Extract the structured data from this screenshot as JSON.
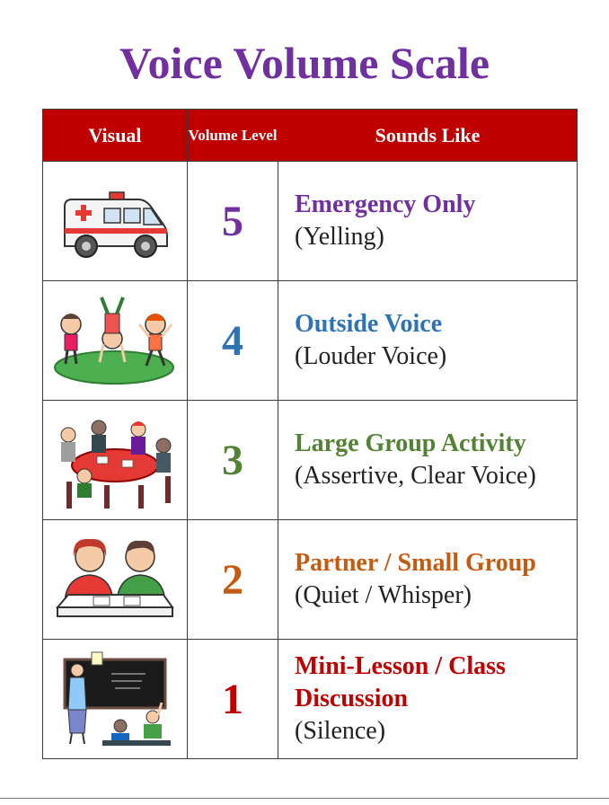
{
  "title": "Voice Volume Scale",
  "table": {
    "headers": {
      "visual": "Visual",
      "level": "Volume Level",
      "sounds": "Sounds Like"
    },
    "rows": [
      {
        "level": "5",
        "title": "Emergency Only",
        "subtitle": "(Yelling)",
        "color": "#7030a0",
        "icon": "ambulance-icon"
      },
      {
        "level": "4",
        "title": "Outside Voice",
        "subtitle": "(Louder Voice)",
        "color": "#2e74b5",
        "icon": "children-playing-icon"
      },
      {
        "level": "3",
        "title": "Large Group Activity",
        "subtitle": "(Assertive, Clear Voice)",
        "color": "#548235",
        "icon": "group-table-icon"
      },
      {
        "level": "2",
        "title": "Partner / Small Group",
        "subtitle": "(Quiet / Whisper)",
        "color": "#c55a11",
        "icon": "partners-desk-icon"
      },
      {
        "level": "1",
        "title": "Mini-Lesson / Class Discussion",
        "subtitle": "(Silence)",
        "color": "#c00000",
        "icon": "teacher-classroom-icon"
      }
    ]
  },
  "colors": {
    "header_bg": "#c00000",
    "title": "#7030a0"
  }
}
